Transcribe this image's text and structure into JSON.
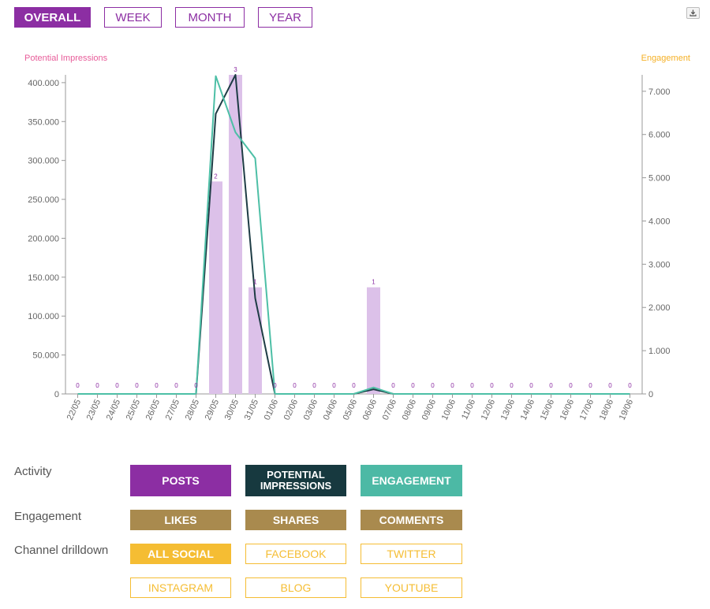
{
  "period_buttons": [
    {
      "label": "OVERALL",
      "active": true
    },
    {
      "label": "WEEK",
      "active": false
    },
    {
      "label": "MONTH",
      "active": false
    },
    {
      "label": "YEAR",
      "active": false
    }
  ],
  "download_icon": "download-icon",
  "colors": {
    "purple": "#8c2ea3",
    "bar": "#dcc1e9",
    "impressions_line": "#1e3c45",
    "engagement_line": "#4dbfa6",
    "left_axis_title": "#e85d9a",
    "right_axis_title": "#f5b025",
    "gold": "#a98a4e",
    "yellow": "#f5bd33",
    "dark_teal": "#17393f",
    "teal": "#4cb9a5"
  },
  "chart_data": {
    "type": "bar",
    "categories": [
      "22/05",
      "23/05",
      "24/05",
      "25/05",
      "26/05",
      "27/05",
      "28/05",
      "29/05",
      "30/05",
      "31/05",
      "01/06",
      "02/06",
      "03/06",
      "04/06",
      "05/06",
      "06/06",
      "07/06",
      "08/06",
      "09/06",
      "10/06",
      "11/06",
      "12/06",
      "13/06",
      "14/06",
      "15/06",
      "16/06",
      "17/06",
      "18/06",
      "19/06"
    ],
    "ylabel": "Potential Impressions",
    "y2label": "Engagement",
    "ylim": [
      0,
      410000
    ],
    "y2lim": [
      0,
      7380
    ],
    "yticks": [
      0,
      50000,
      100000,
      150000,
      200000,
      250000,
      300000,
      350000,
      400000
    ],
    "yticklabels": [
      "0",
      "50.000",
      "100.000",
      "150.000",
      "200.000",
      "250.000",
      "300.000",
      "350.000",
      "400.000"
    ],
    "y2ticks": [
      0,
      1000,
      2000,
      3000,
      4000,
      5000,
      6000,
      7000
    ],
    "y2ticklabels": [
      "0",
      "1.000",
      "2.000",
      "3.000",
      "4.000",
      "5.000",
      "6.000",
      "7.000"
    ],
    "series": [
      {
        "kind": "bar",
        "axis": "left",
        "values": [
          0,
          0,
          0,
          0,
          0,
          0,
          0,
          273000,
          410000,
          137000,
          0,
          0,
          0,
          0,
          0,
          137000,
          0,
          0,
          0,
          0,
          0,
          0,
          0,
          0,
          0,
          0,
          0,
          0,
          0
        ]
      },
      {
        "kind": "line",
        "axis": "left",
        "values": [
          0,
          0,
          0,
          0,
          0,
          0,
          0,
          360000,
          410000,
          123000,
          0,
          0,
          0,
          0,
          0,
          6000,
          0,
          0,
          0,
          0,
          0,
          0,
          0,
          0,
          0,
          0,
          0,
          0,
          0
        ]
      },
      {
        "kind": "line",
        "axis": "right",
        "values": [
          0,
          0,
          0,
          0,
          0,
          0,
          0,
          7350,
          6050,
          5450,
          0,
          0,
          0,
          0,
          0,
          150,
          0,
          0,
          0,
          0,
          0,
          0,
          0,
          0,
          0,
          0,
          0,
          0,
          0
        ]
      }
    ],
    "bar_labels": [
      "0",
      "0",
      "0",
      "0",
      "0",
      "0",
      "0",
      "2",
      "3",
      "1",
      "0",
      "0",
      "0",
      "0",
      "0",
      "1",
      "0",
      "0",
      "0",
      "0",
      "0",
      "0",
      "0",
      "0",
      "0",
      "0",
      "0",
      "0",
      "0"
    ],
    "grid": false
  },
  "controls": {
    "activity": {
      "label": "Activity",
      "buttons": [
        {
          "lines": [
            "POSTS"
          ]
        },
        {
          "lines": [
            "POTENTIAL",
            "IMPRESSIONS"
          ]
        },
        {
          "lines": [
            "ENGAGEMENT"
          ]
        }
      ]
    },
    "engagement": {
      "label": "Engagement",
      "buttons": [
        {
          "label": "LIKES"
        },
        {
          "label": "SHARES"
        },
        {
          "label": "COMMENTS"
        }
      ]
    },
    "channel": {
      "label": "Channel drilldown",
      "buttons": [
        {
          "label": "ALL SOCIAL",
          "active": true
        },
        {
          "label": "FACEBOOK",
          "active": false
        },
        {
          "label": "TWITTER",
          "active": false
        },
        {
          "label": "INSTAGRAM",
          "active": false
        },
        {
          "label": "BLOG",
          "active": false
        },
        {
          "label": "YOUTUBE",
          "active": false
        }
      ]
    }
  }
}
